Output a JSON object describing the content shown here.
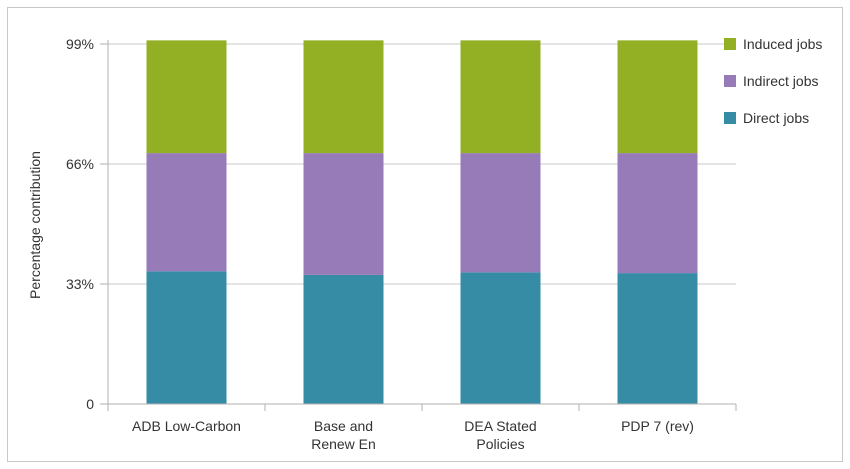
{
  "chart_data": {
    "type": "bar",
    "stacked": true,
    "title": "",
    "xlabel": "",
    "ylabel": "Percentage contribution",
    "ylim": [
      0,
      99
    ],
    "yticks": [
      "0",
      "33%",
      "66%",
      "99%"
    ],
    "ytick_values": [
      0,
      33,
      66,
      99
    ],
    "categories": [
      [
        "ADB Low-Carbon"
      ],
      [
        "Base and",
        "Renew En"
      ],
      [
        "DEA Stated",
        "Policies"
      ],
      [
        "PDP 7 (rev)"
      ]
    ],
    "series": [
      {
        "name": "Direct jobs",
        "color": "#368ba5",
        "values": [
          36.5,
          35.5,
          36.2,
          36.0
        ]
      },
      {
        "name": "Indirect jobs",
        "color": "#977bb8",
        "values": [
          32.5,
          33.5,
          32.8,
          33.0
        ]
      },
      {
        "name": "Induced jobs",
        "color": "#93b025",
        "values": [
          31.0,
          31.0,
          31.0,
          31.0
        ]
      }
    ],
    "legend": {
      "position": "top-right",
      "order": [
        "Induced jobs",
        "Indirect jobs",
        "Direct jobs"
      ]
    },
    "grid": true
  }
}
